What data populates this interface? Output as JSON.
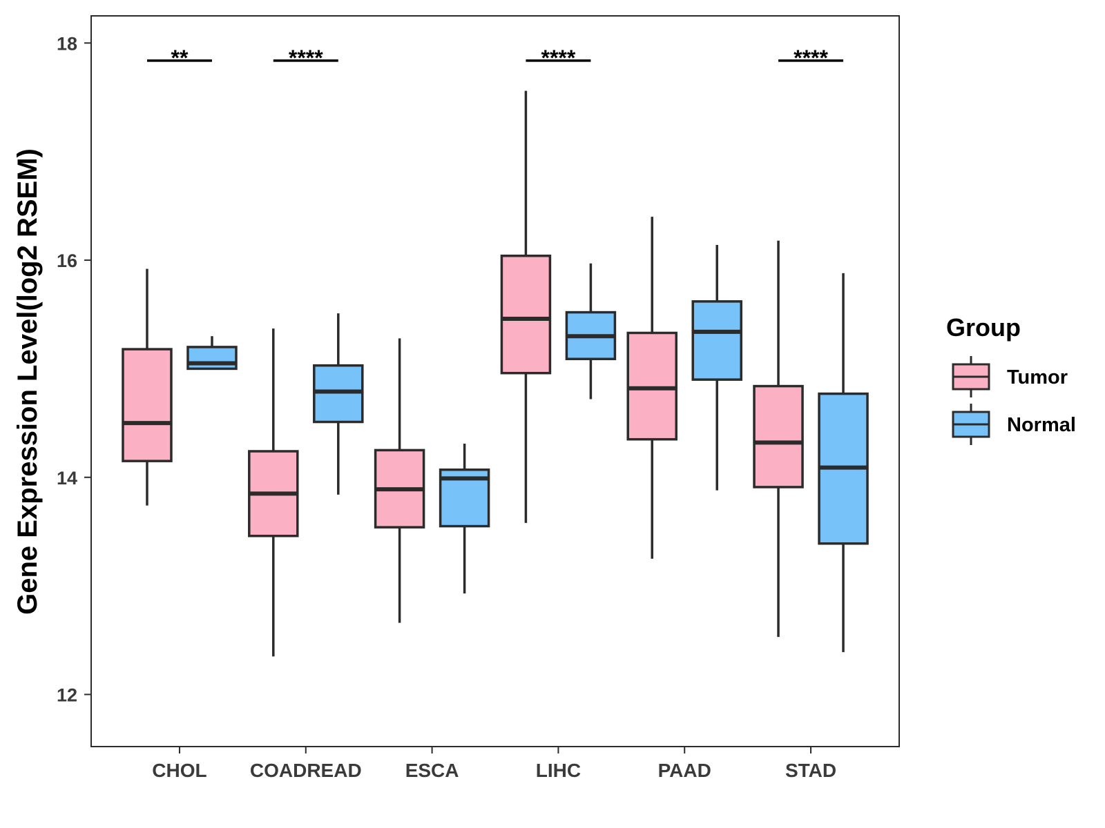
{
  "chart_data": {
    "type": "boxplot",
    "title": "",
    "xlabel": "",
    "ylabel": "Gene Expression Level(log2 RSEM)",
    "ylim": [
      11.52,
      18.25
    ],
    "yticks": [
      12,
      14,
      16,
      18
    ],
    "categories": [
      "CHOL",
      "COADREAD",
      "ESCA",
      "LIHC",
      "PAAD",
      "STAD"
    ],
    "series": [
      {
        "name": "Tumor",
        "color": "#FBB1C3",
        "boxes": [
          {
            "min": 13.74,
            "q1": 14.15,
            "median": 14.5,
            "q3": 15.18,
            "max": 15.92
          },
          {
            "min": 12.35,
            "q1": 13.46,
            "median": 13.85,
            "q3": 14.24,
            "max": 15.37
          },
          {
            "min": 12.66,
            "q1": 13.54,
            "median": 13.89,
            "q3": 14.25,
            "max": 15.28
          },
          {
            "min": 13.58,
            "q1": 14.96,
            "median": 15.46,
            "q3": 16.04,
            "max": 17.56
          },
          {
            "min": 13.25,
            "q1": 14.35,
            "median": 14.82,
            "q3": 15.33,
            "max": 16.4
          },
          {
            "min": 12.53,
            "q1": 13.91,
            "median": 14.32,
            "q3": 14.84,
            "max": 16.18
          }
        ]
      },
      {
        "name": "Normal",
        "color": "#77C2F9",
        "boxes": [
          {
            "min": 14.99,
            "q1": 15.0,
            "median": 15.05,
            "q3": 15.2,
            "max": 15.3
          },
          {
            "min": 13.84,
            "q1": 14.51,
            "median": 14.79,
            "q3": 15.03,
            "max": 15.51
          },
          {
            "min": 12.93,
            "q1": 13.55,
            "median": 13.99,
            "q3": 14.07,
            "max": 14.31
          },
          {
            "min": 14.72,
            "q1": 15.09,
            "median": 15.3,
            "q3": 15.52,
            "max": 15.97
          },
          {
            "min": 13.88,
            "q1": 14.9,
            "median": 15.34,
            "q3": 15.62,
            "max": 16.14
          },
          {
            "min": 12.39,
            "q1": 13.39,
            "median": 14.09,
            "q3": 14.77,
            "max": 15.88
          }
        ]
      }
    ],
    "significance": [
      {
        "category": "CHOL",
        "label": "**"
      },
      {
        "category": "COADREAD",
        "label": "****"
      },
      {
        "category": "ESCA",
        "label": ""
      },
      {
        "category": "LIHC",
        "label": "****"
      },
      {
        "category": "PAAD",
        "label": ""
      },
      {
        "category": "STAD",
        "label": "****"
      }
    ],
    "significance_y": 17.92,
    "legend": {
      "title": "Group",
      "position": "right",
      "items": [
        "Tumor",
        "Normal"
      ]
    }
  }
}
